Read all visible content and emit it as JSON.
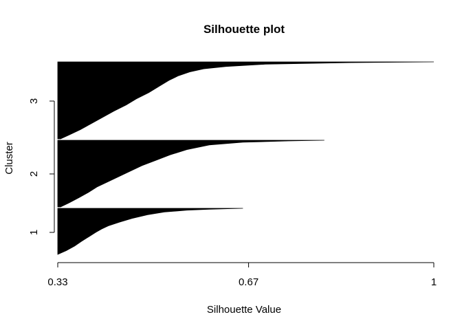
{
  "chart_data": {
    "type": "bar",
    "orientation": "horizontal",
    "title": "Silhouette plot",
    "xlabel": "Silhouette Value",
    "ylabel": "Cluster",
    "xlim": [
      0.33,
      1
    ],
    "x_ticks": [
      "0.33",
      "0.67",
      "1"
    ],
    "y_ticks": [
      "1",
      "2",
      "3"
    ],
    "bar_color": "#000000",
    "grid": false,
    "legend": false,
    "clusters": [
      {
        "label": "1",
        "profile": [
          [
            0.0,
            0.33
          ],
          [
            0.08,
            0.345
          ],
          [
            0.18,
            0.36
          ],
          [
            0.28,
            0.372
          ],
          [
            0.38,
            0.385
          ],
          [
            0.48,
            0.398
          ],
          [
            0.55,
            0.408
          ],
          [
            0.62,
            0.42
          ],
          [
            0.7,
            0.44
          ],
          [
            0.78,
            0.462
          ],
          [
            0.86,
            0.49
          ],
          [
            0.92,
            0.52
          ],
          [
            0.96,
            0.56
          ],
          [
            0.98,
            0.6
          ],
          [
            1.0,
            0.66
          ]
        ]
      },
      {
        "label": "2",
        "profile": [
          [
            0.0,
            0.335
          ],
          [
            0.06,
            0.35
          ],
          [
            0.14,
            0.368
          ],
          [
            0.22,
            0.385
          ],
          [
            0.3,
            0.4
          ],
          [
            0.38,
            0.42
          ],
          [
            0.46,
            0.44
          ],
          [
            0.54,
            0.46
          ],
          [
            0.62,
            0.48
          ],
          [
            0.7,
            0.505
          ],
          [
            0.78,
            0.53
          ],
          [
            0.86,
            0.56
          ],
          [
            0.93,
            0.6
          ],
          [
            0.97,
            0.66
          ],
          [
            0.99,
            0.74
          ],
          [
            1.0,
            0.805
          ]
        ]
      },
      {
        "label": "3",
        "profile": [
          [
            0.0,
            0.335
          ],
          [
            0.05,
            0.35
          ],
          [
            0.12,
            0.37
          ],
          [
            0.2,
            0.39
          ],
          [
            0.28,
            0.41
          ],
          [
            0.36,
            0.43
          ],
          [
            0.44,
            0.452
          ],
          [
            0.52,
            0.47
          ],
          [
            0.6,
            0.492
          ],
          [
            0.68,
            0.51
          ],
          [
            0.76,
            0.528
          ],
          [
            0.82,
            0.545
          ],
          [
            0.87,
            0.565
          ],
          [
            0.91,
            0.59
          ],
          [
            0.94,
            0.63
          ],
          [
            0.97,
            0.7
          ],
          [
            0.99,
            0.85
          ],
          [
            1.0,
            1.0
          ]
        ]
      }
    ]
  }
}
